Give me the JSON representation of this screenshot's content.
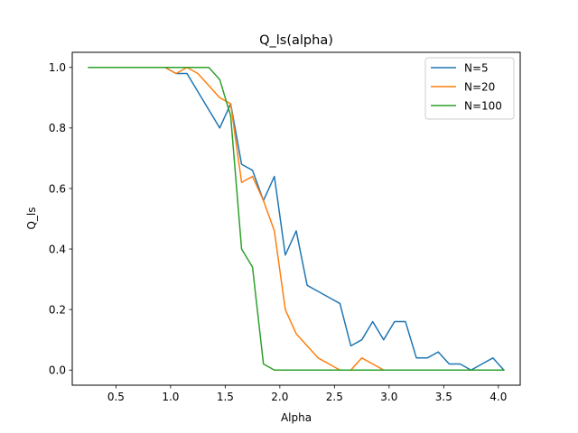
{
  "chart_data": {
    "type": "line",
    "title": "Q_ls(alpha)",
    "xlabel": "Alpha",
    "ylabel": "Q_ls",
    "xlim": [
      0.1,
      4.2
    ],
    "ylim": [
      -0.05,
      1.05
    ],
    "xticks": [
      "0.5",
      "1.0",
      "1.5",
      "2.0",
      "2.5",
      "3.0",
      "3.5",
      "4.0"
    ],
    "yticks": [
      "0.0",
      "0.2",
      "0.4",
      "0.6",
      "0.8",
      "1.0"
    ],
    "grid": false,
    "legend_position": "top-right",
    "x": [
      0.25,
      0.35,
      0.45,
      0.55,
      0.65,
      0.75,
      0.85,
      0.95,
      1.05,
      1.15,
      1.25,
      1.35,
      1.45,
      1.55,
      1.65,
      1.75,
      1.85,
      1.95,
      2.05,
      2.15,
      2.25,
      2.35,
      2.45,
      2.55,
      2.65,
      2.75,
      2.85,
      2.95,
      3.05,
      3.15,
      3.25,
      3.35,
      3.45,
      3.55,
      3.65,
      3.75,
      3.85,
      3.95,
      4.05
    ],
    "series": [
      {
        "name": "N=5",
        "color": "#1f77b4",
        "values": [
          1.0,
          1.0,
          1.0,
          1.0,
          1.0,
          1.0,
          1.0,
          1.0,
          0.98,
          0.98,
          0.92,
          0.86,
          0.8,
          0.88,
          0.68,
          0.66,
          0.56,
          0.64,
          0.38,
          0.46,
          0.28,
          0.26,
          0.24,
          0.22,
          0.08,
          0.1,
          0.16,
          0.1,
          0.16,
          0.16,
          0.04,
          0.04,
          0.06,
          0.02,
          0.02,
          0.0,
          0.02,
          0.04,
          0.0
        ]
      },
      {
        "name": "N=20",
        "color": "#ff7f0e",
        "values": [
          1.0,
          1.0,
          1.0,
          1.0,
          1.0,
          1.0,
          1.0,
          1.0,
          0.98,
          1.0,
          0.98,
          0.94,
          0.9,
          0.88,
          0.62,
          0.64,
          0.56,
          0.46,
          0.2,
          0.12,
          0.08,
          0.04,
          0.02,
          0.0,
          0.0,
          0.04,
          0.02,
          0.0,
          0.0,
          0.0,
          0.0,
          0.0,
          0.0,
          0.0,
          0.0,
          0.0,
          0.0,
          0.0,
          0.0
        ]
      },
      {
        "name": "N=100",
        "color": "#2ca02c",
        "values": [
          1.0,
          1.0,
          1.0,
          1.0,
          1.0,
          1.0,
          1.0,
          1.0,
          1.0,
          1.0,
          1.0,
          1.0,
          0.96,
          0.84,
          0.4,
          0.34,
          0.02,
          0.0,
          0.0,
          0.0,
          0.0,
          0.0,
          0.0,
          0.0,
          0.0,
          0.0,
          0.0,
          0.0,
          0.0,
          0.0,
          0.0,
          0.0,
          0.0,
          0.0,
          0.0,
          0.0,
          0.0,
          0.0,
          0.0
        ]
      }
    ]
  }
}
